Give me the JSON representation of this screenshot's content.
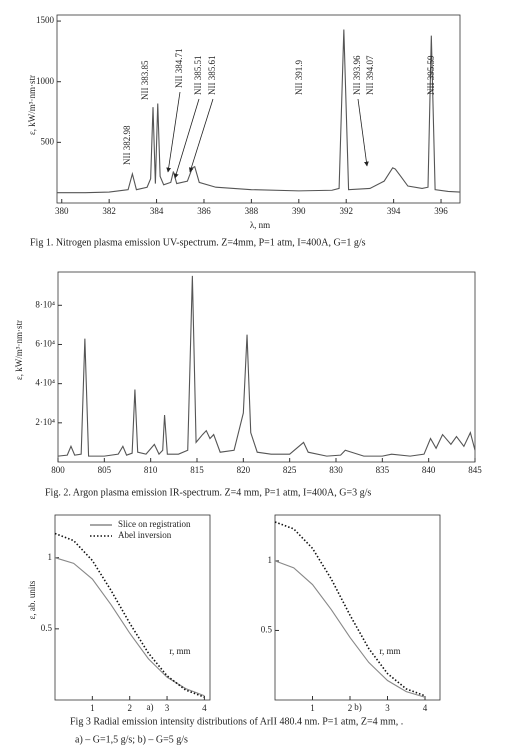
{
  "chart_data": [
    {
      "type": "line",
      "title": "Fig 1. Nitrogen plasma  emission UV-spectrum. Z=4mm, P=1 atm, I=400A, G=1 g/s",
      "x_label": "λ, nm",
      "y_label": "ε, kW/m³·nm·str",
      "x": [
        379.8,
        381,
        382,
        382.8,
        382.98,
        383.15,
        383.6,
        383.75,
        383.85,
        383.95,
        384.05,
        384.15,
        384.3,
        384.6,
        384.71,
        384.85,
        385.3,
        385.51,
        385.61,
        385.8,
        386.5,
        388,
        390,
        391.4,
        391.7,
        391.9,
        392.1,
        393,
        393.6,
        393.96,
        394.07,
        394.3,
        394.6,
        395.2,
        395.45,
        395.59,
        395.75,
        396.3,
        396.8
      ],
      "values": [
        85,
        85,
        90,
        110,
        240,
        110,
        130,
        200,
        790,
        160,
        820,
        220,
        150,
        170,
        260,
        160,
        180,
        290,
        300,
        170,
        130,
        110,
        100,
        105,
        120,
        1430,
        110,
        120,
        180,
        290,
        280,
        220,
        140,
        120,
        130,
        1380,
        110,
        95,
        90
      ],
      "color": "#555555",
      "xlim": [
        379.8,
        396.8
      ],
      "ylim": [
        0,
        1550
      ],
      "xticks": [
        380,
        382,
        384,
        386,
        388,
        390,
        392,
        394,
        396
      ],
      "yticks": [
        500,
        1000,
        1500
      ],
      "annotations": [
        "NII 382.98",
        "NII 383.85",
        "NII 384.71",
        "NII 385.51",
        "NII 385.61",
        "NII 391.9",
        "NII 393.96",
        "NII 394.07",
        "NII 395.59"
      ]
    },
    {
      "type": "line",
      "title": "Fig. 2. Argon plasma emission IR-spectrum. Z=4 mm, P=1 atm, I=400A, G=3 g/s",
      "y_label": "ε, kW/m³·nm·str",
      "x": [
        800,
        801,
        801.4,
        801.8,
        802.5,
        802.9,
        803.3,
        805,
        806.5,
        807,
        807.4,
        808,
        808.3,
        808.6,
        809.5,
        810.4,
        810.9,
        811.3,
        811.5,
        811.8,
        813,
        814,
        814.5,
        814.9,
        815.6,
        816,
        816.4,
        816.8,
        817.5,
        819,
        820,
        820.4,
        820.8,
        821.5,
        823,
        825,
        826.5,
        827,
        829,
        830.5,
        831,
        833,
        835,
        836,
        838,
        839.5,
        840.2,
        840.8,
        841.5,
        842.4,
        843,
        843.8,
        844.5,
        845
      ],
      "values": [
        3000,
        3500,
        8000,
        3500,
        4000,
        63000,
        3000,
        3000,
        4000,
        8000,
        3500,
        4500,
        37000,
        5000,
        4000,
        9000,
        4000,
        6000,
        24000,
        4000,
        4000,
        6000,
        95000,
        10000,
        14000,
        16000,
        12000,
        14000,
        5000,
        6000,
        25000,
        65000,
        15000,
        5000,
        4000,
        4000,
        10000,
        5000,
        3000,
        3500,
        6000,
        3000,
        3000,
        4000,
        3000,
        4000,
        12000,
        7000,
        14000,
        9000,
        13000,
        8000,
        15000,
        6000
      ],
      "color": "#555555",
      "xlim": [
        800,
        845
      ],
      "ylim": [
        0,
        97000
      ],
      "xticks": [
        800,
        805,
        810,
        815,
        820,
        825,
        830,
        835,
        840,
        845
      ],
      "yticks": [
        {
          "value": 20000,
          "label": "2·10⁴"
        },
        {
          "value": 40000,
          "label": "4·10⁴"
        },
        {
          "value": 60000,
          "label": "6·10⁴"
        },
        {
          "value": 80000,
          "label": "8·10⁴"
        }
      ]
    },
    {
      "type": "line",
      "label": "a)",
      "x_label": "r, mm",
      "y_label": "ε, ab. units",
      "x": [
        0,
        0.5,
        1,
        1.5,
        2,
        2.5,
        3,
        3.5,
        4
      ],
      "series": [
        {
          "name": "Slice on registration",
          "color": "#888888",
          "line_style": "solid",
          "values": [
            1.0,
            0.96,
            0.85,
            0.67,
            0.47,
            0.29,
            0.16,
            0.08,
            0.03
          ]
        },
        {
          "name": "Abel inversion",
          "color": "#111111",
          "line_style": "dotted",
          "values": [
            1.17,
            1.12,
            0.98,
            0.77,
            0.54,
            0.33,
            0.17,
            0.07,
            0.02
          ]
        }
      ],
      "legend": "top-right",
      "xlim": [
        0,
        4.15
      ],
      "ylim": [
        0,
        1.3
      ],
      "xticks": [
        1,
        2,
        3,
        4
      ],
      "yticks": [
        0.5,
        1
      ]
    },
    {
      "type": "line",
      "label": "b)",
      "x_label": "r, mm",
      "x": [
        0,
        0.5,
        1,
        1.5,
        2,
        2.5,
        3,
        3.5,
        4
      ],
      "series": [
        {
          "color": "#888888",
          "line_style": "solid",
          "values": [
            1.0,
            0.95,
            0.83,
            0.65,
            0.45,
            0.27,
            0.14,
            0.06,
            0.02
          ]
        },
        {
          "color": "#111111",
          "line_style": "dotted",
          "values": [
            1.28,
            1.23,
            1.09,
            0.87,
            0.61,
            0.37,
            0.19,
            0.08,
            0.03
          ]
        }
      ],
      "xlim": [
        0,
        4.4
      ],
      "ylim": [
        0,
        1.33
      ],
      "xticks": [
        1,
        2,
        3,
        4
      ],
      "yticks": [
        0.5,
        1
      ]
    }
  ],
  "figure_3_caption": [
    "Fig 3 Radial emission intensity distributions of ArII 480.4 nm. P=1 atm, Z=4 mm, .",
    "a) – G=1,5 g/s;  b) – G=5 g/s"
  ]
}
